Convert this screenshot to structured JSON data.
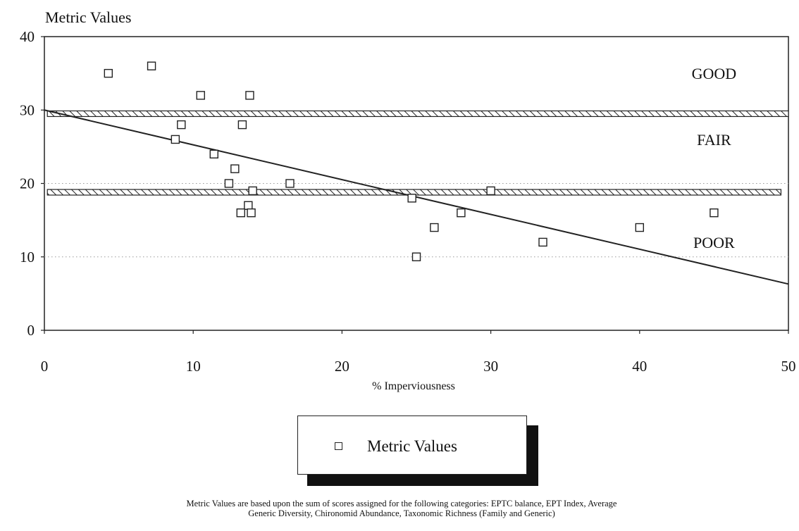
{
  "chart_data": {
    "type": "scatter",
    "title": "",
    "ylabel": "Metric Values",
    "xlabel": "% Imperviousness",
    "xlim": [
      0,
      50
    ],
    "ylim": [
      0,
      40
    ],
    "xticks": [
      0,
      10,
      20,
      30,
      40,
      50
    ],
    "yticks": [
      0,
      10,
      20,
      30,
      40
    ],
    "grid": "dotted horizontal at 10 and 20",
    "series": [
      {
        "name": "Metric Values",
        "marker": "open-square",
        "points": [
          {
            "x": 4.3,
            "y": 35
          },
          {
            "x": 7.2,
            "y": 36
          },
          {
            "x": 10.5,
            "y": 32
          },
          {
            "x": 13.8,
            "y": 32
          },
          {
            "x": 9.2,
            "y": 28
          },
          {
            "x": 13.3,
            "y": 28
          },
          {
            "x": 8.8,
            "y": 26
          },
          {
            "x": 11.4,
            "y": 24
          },
          {
            "x": 12.8,
            "y": 22
          },
          {
            "x": 12.4,
            "y": 20
          },
          {
            "x": 16.5,
            "y": 20
          },
          {
            "x": 14.0,
            "y": 19
          },
          {
            "x": 13.7,
            "y": 17
          },
          {
            "x": 13.2,
            "y": 16
          },
          {
            "x": 13.9,
            "y": 16
          },
          {
            "x": 24.7,
            "y": 18
          },
          {
            "x": 30.0,
            "y": 19
          },
          {
            "x": 26.2,
            "y": 14
          },
          {
            "x": 28.0,
            "y": 16
          },
          {
            "x": 25.0,
            "y": 10
          },
          {
            "x": 33.5,
            "y": 12
          },
          {
            "x": 40.0,
            "y": 14
          },
          {
            "x": 45.0,
            "y": 16
          }
        ]
      }
    ],
    "regression_line": {
      "x1": 0,
      "y1": 30,
      "x2": 50,
      "y2": 6.3
    },
    "thresholds": [
      {
        "y": 29.5,
        "x_start": 0.2,
        "x_end": 50
      },
      {
        "y": 18.8,
        "x_start": 0.2,
        "x_end": 49.5
      }
    ],
    "zones": [
      {
        "label": "GOOD",
        "x": 45,
        "y": 35
      },
      {
        "label": "FAIR",
        "x": 45,
        "y": 26
      },
      {
        "label": "POOR",
        "x": 45,
        "y": 12
      }
    ],
    "legend": {
      "label": "Metric Values",
      "placement": "bottom-center"
    }
  },
  "footnote": {
    "line1": "Metric Values are based upon the sum of scores assigned for  the following categories: EPTC balance, EPT Index, Average",
    "line2": "Generic Diversity, Chironomid Abundance, Taxonomic Richness  (Family and Generic)"
  },
  "colors": {
    "ink": "#111111",
    "background": "#ffffff",
    "grid": "#9a9a9a"
  }
}
